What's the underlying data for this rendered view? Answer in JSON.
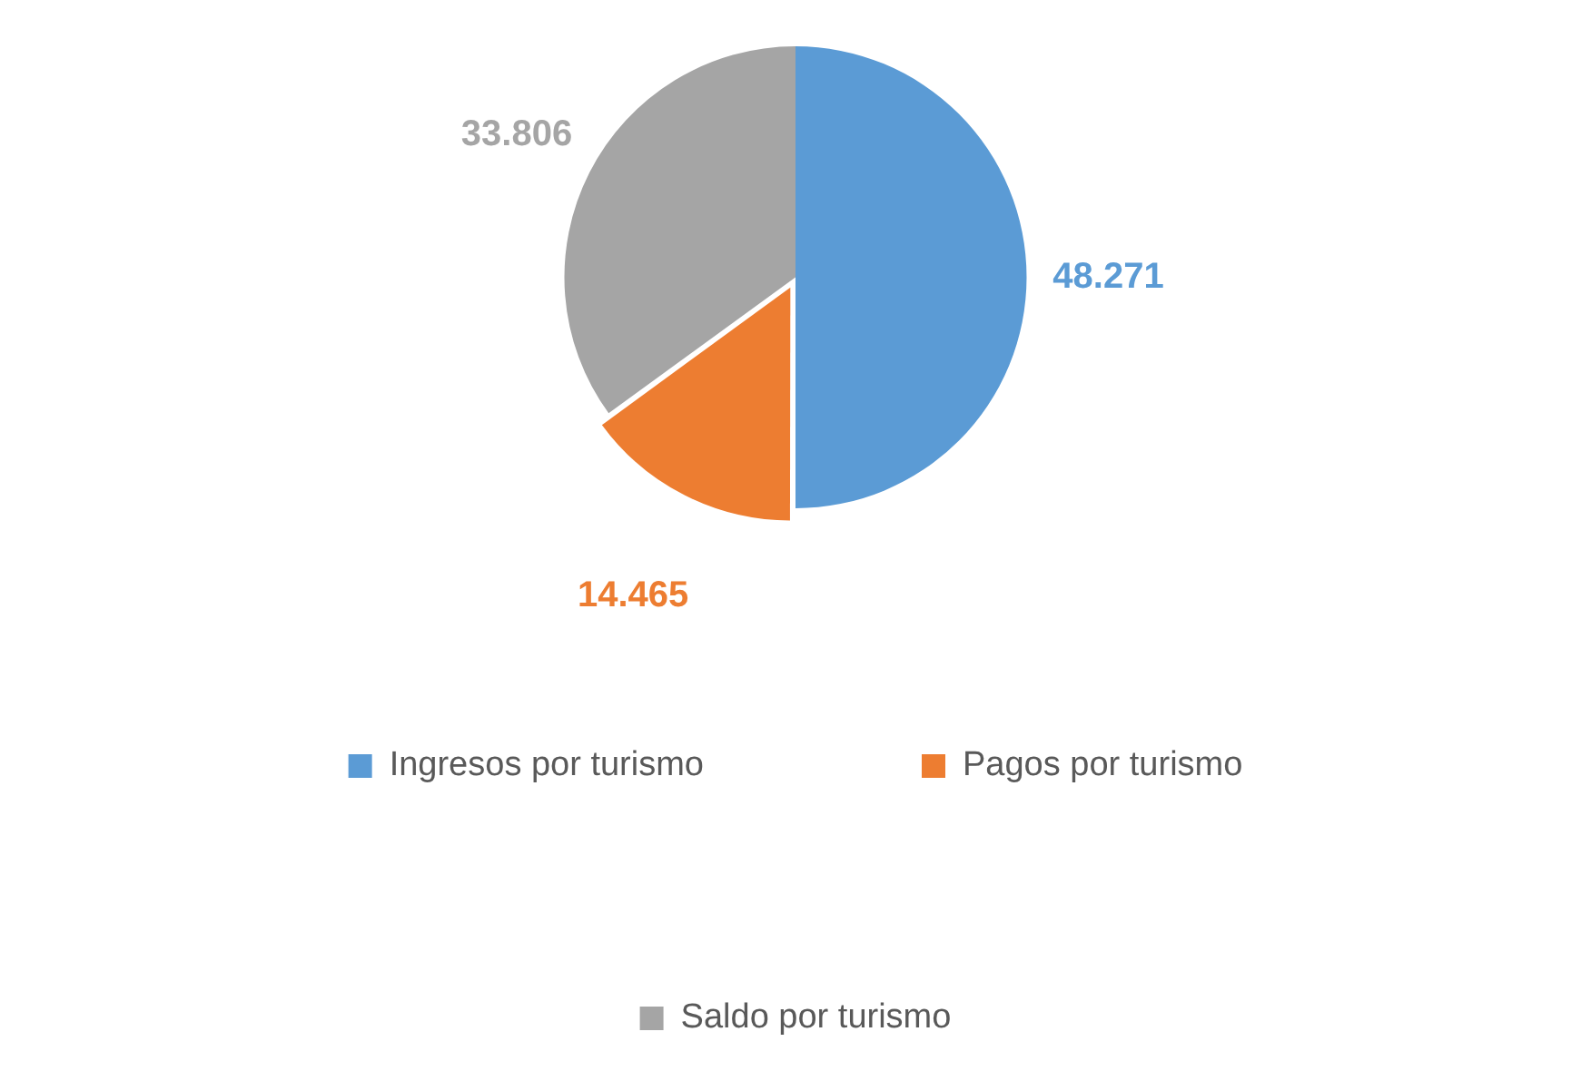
{
  "chart_data": {
    "type": "pie",
    "categories": [
      "Ingresos por turismo",
      "Pagos por turismo",
      "Saldo por turismo"
    ],
    "values": [
      48271,
      14465,
      33806
    ],
    "colors": [
      "#5b9bd5",
      "#ed7d31",
      "#a5a5a5"
    ],
    "value_labels": [
      "48.271",
      "14.465",
      "33.806"
    ],
    "legend": "bottom"
  }
}
